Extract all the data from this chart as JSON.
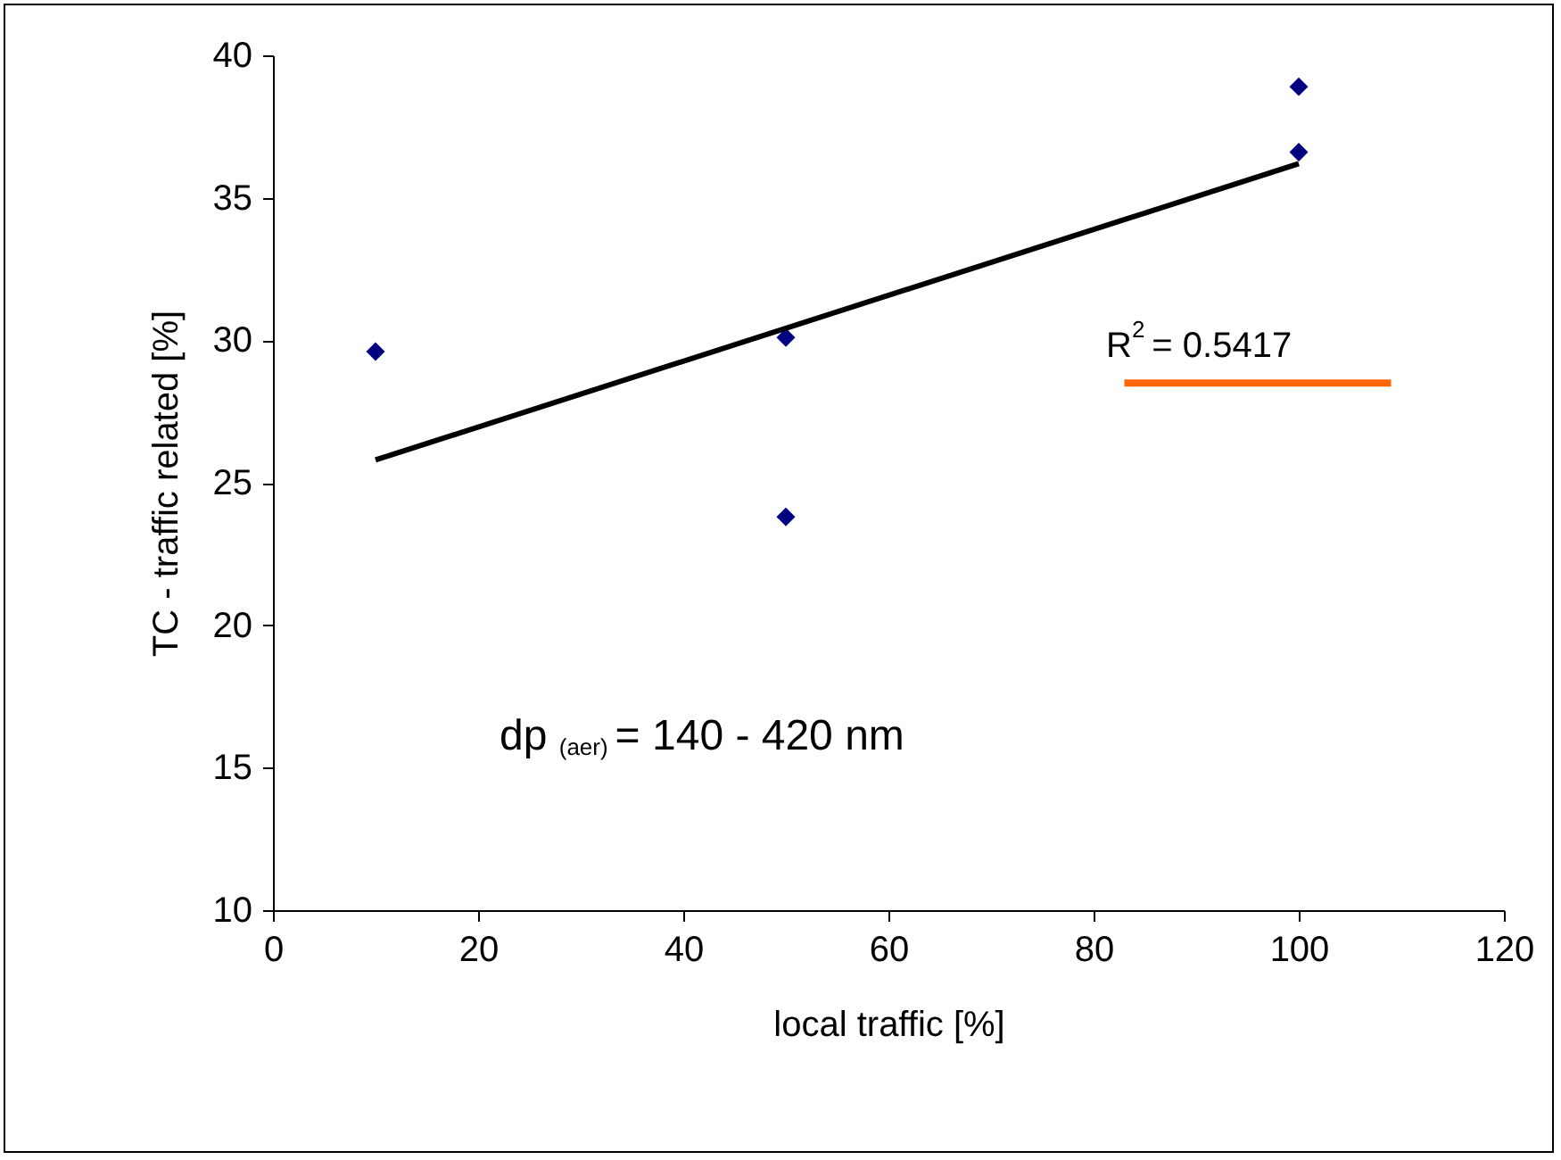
{
  "chart_data": {
    "type": "scatter",
    "xlabel": "local traffic [%]",
    "ylabel": "TC - traffic related [%]",
    "xlim": [
      0,
      120
    ],
    "xticks": [
      0,
      20,
      40,
      60,
      80,
      100,
      120
    ],
    "ylim": [
      10,
      40
    ],
    "yticks": [
      10,
      15,
      20,
      25,
      30,
      35,
      40
    ],
    "grid": false,
    "marker": "diamond",
    "x": [
      10,
      50,
      50,
      100,
      100
    ],
    "series": [
      {
        "color": "#000080",
        "values": [
          29.6,
          30.1,
          23.8,
          38.9,
          36.6
        ]
      },
      {
        "type": "line",
        "color": "#000000",
        "x": [
          10,
          100
        ],
        "values": [
          25.8,
          36.2
        ],
        "marker": "none"
      },
      {
        "type": "line",
        "color": "#ff6600",
        "x": [
          83,
          109
        ],
        "values": [
          28.5,
          28.5
        ],
        "marker": "none"
      }
    ],
    "annotations": [
      "R$^{2}$ = 0.5417",
      "dp $_{(aer)}$ = 140 - 420 nm"
    ]
  }
}
